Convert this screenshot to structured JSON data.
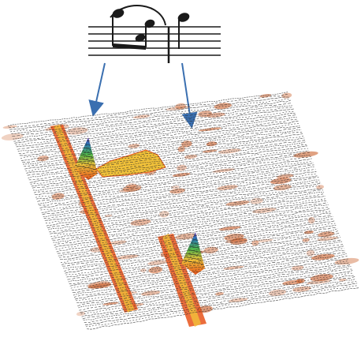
{
  "figure": {
    "colors": {
      "background": "#ffffff",
      "ink": "#1a1a1a",
      "arrow": "#3a6fb0",
      "trace": "#2a2a2a",
      "noise": "#c8571f",
      "ridge_low": "#e8541a",
      "ridge_mid": "#f2c23a",
      "ridge_high_a": "#4fb84a",
      "ridge_high_b": "#2a7bc4",
      "ridge_peak": "#7a3fb0"
    },
    "notation": {
      "staff_lines": 5,
      "note_groups": [
        "slurred-beamed-group",
        "single-note"
      ],
      "barline": true
    },
    "arrows": [
      {
        "from": "slurred-beamed-group",
        "to": "first-ridge"
      },
      {
        "from": "single-note",
        "to": "second-ridge"
      }
    ],
    "waterfall": {
      "trace_count": 95,
      "ridges": [
        "first-ridge",
        "second-ridge"
      ]
    }
  }
}
